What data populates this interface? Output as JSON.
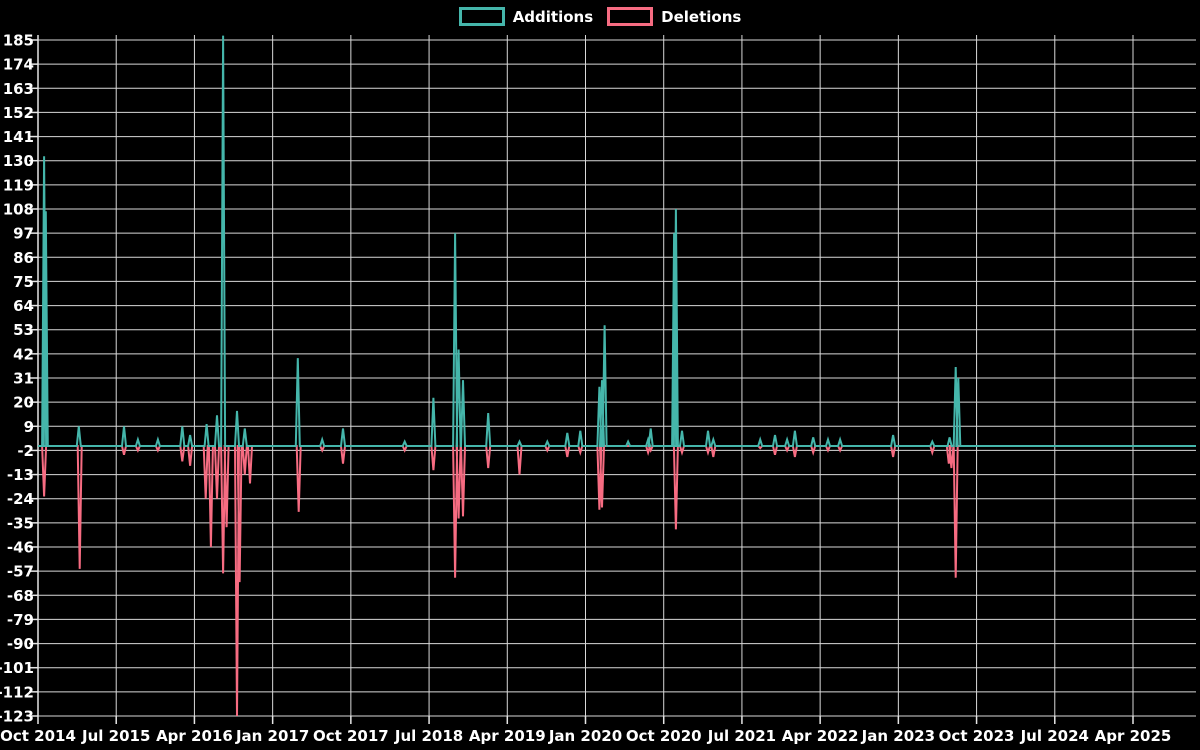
{
  "chart_data": {
    "type": "line",
    "title": "",
    "background_color": "#000000",
    "text_color": "#ffffff",
    "grid": {
      "show": true,
      "color": "#d9d9d9",
      "axis_color": "#e6e6e6"
    },
    "legend": {
      "position": "top-center",
      "entries": [
        "Additions",
        "Deletions"
      ]
    },
    "y_axis": {
      "min": -123,
      "max": 185,
      "tick_step": 11,
      "ticks": [
        185,
        174,
        163,
        152,
        141,
        130,
        119,
        108,
        97,
        86,
        75,
        64,
        53,
        42,
        31,
        20,
        9,
        -2,
        -13,
        -24,
        -35,
        -46,
        -57,
        -68,
        -79,
        -90,
        -101,
        -112,
        -123
      ]
    },
    "x_axis": {
      "unit": "months since Oct 2014",
      "tick_labels": [
        "Oct 2014",
        "Jul 2015",
        "Apr 2016",
        "Jan 2017",
        "Oct 2017",
        "Jul 2018",
        "Apr 2019",
        "Jan 2020",
        "Oct 2020",
        "Jul 2021",
        "Apr 2022",
        "Jan 2023",
        "Oct 2023",
        "Jul 2024",
        "Apr 2025"
      ],
      "label_interval_months": 9,
      "span_months": 133.3
    },
    "series": [
      {
        "name": "Additions",
        "color": "#45b6ab",
        "baseline": 0,
        "spikes": [
          [
            0.7,
            132
          ],
          [
            0.9,
            107
          ],
          [
            4.7,
            9
          ],
          [
            9.9,
            9
          ],
          [
            11.5,
            3
          ],
          [
            13.8,
            3
          ],
          [
            16.6,
            9
          ],
          [
            17.5,
            5
          ],
          [
            19.4,
            10
          ],
          [
            20.6,
            14
          ],
          [
            21.3,
            187
          ],
          [
            22.9,
            16
          ],
          [
            23.8,
            8
          ],
          [
            29.9,
            40
          ],
          [
            32.7,
            3
          ],
          [
            35.1,
            8
          ],
          [
            42.2,
            2
          ],
          [
            45.5,
            22
          ],
          [
            48.0,
            97
          ],
          [
            48.4,
            44
          ],
          [
            48.9,
            30
          ],
          [
            51.8,
            15
          ],
          [
            55.4,
            2
          ],
          [
            58.6,
            2
          ],
          [
            60.9,
            6
          ],
          [
            62.4,
            7
          ],
          [
            64.6,
            27
          ],
          [
            64.9,
            30
          ],
          [
            65.2,
            55
          ],
          [
            67.9,
            2
          ],
          [
            70.2,
            3
          ],
          [
            70.5,
            8
          ],
          [
            73.2,
            97
          ],
          [
            73.4,
            108
          ],
          [
            74.1,
            7
          ],
          [
            77.1,
            7
          ],
          [
            77.7,
            3
          ],
          [
            83.1,
            3
          ],
          [
            84.8,
            5
          ],
          [
            86.2,
            3
          ],
          [
            87.1,
            7
          ],
          [
            89.2,
            4
          ],
          [
            90.9,
            3
          ],
          [
            92.3,
            3
          ],
          [
            98.4,
            5
          ],
          [
            102.9,
            2
          ],
          [
            104.9,
            4
          ],
          [
            105.6,
            36
          ],
          [
            105.9,
            31
          ]
        ]
      },
      {
        "name": "Deletions",
        "color": "#f76c82",
        "baseline": 0,
        "spikes": [
          [
            0.7,
            -23
          ],
          [
            4.8,
            -56
          ],
          [
            9.9,
            -4
          ],
          [
            11.5,
            -2
          ],
          [
            13.8,
            -2
          ],
          [
            16.6,
            -7
          ],
          [
            17.5,
            -9
          ],
          [
            19.3,
            -24
          ],
          [
            19.9,
            -46
          ],
          [
            20.6,
            -24
          ],
          [
            21.3,
            -58
          ],
          [
            21.7,
            -37
          ],
          [
            22.9,
            -123
          ],
          [
            23.2,
            -62
          ],
          [
            23.8,
            -13
          ],
          [
            24.4,
            -17
          ],
          [
            30.0,
            -30
          ],
          [
            32.7,
            -2
          ],
          [
            35.1,
            -8
          ],
          [
            42.2,
            -2
          ],
          [
            45.5,
            -11
          ],
          [
            48.0,
            -60
          ],
          [
            48.4,
            -33
          ],
          [
            48.9,
            -32
          ],
          [
            51.8,
            -10
          ],
          [
            55.4,
            -13
          ],
          [
            58.6,
            -2
          ],
          [
            60.9,
            -5
          ],
          [
            62.4,
            -3
          ],
          [
            64.6,
            -29
          ],
          [
            64.9,
            -28
          ],
          [
            70.2,
            -3
          ],
          [
            70.5,
            -2
          ],
          [
            73.4,
            -38
          ],
          [
            74.1,
            -3
          ],
          [
            77.1,
            -3
          ],
          [
            77.7,
            -5
          ],
          [
            83.1,
            -1
          ],
          [
            84.8,
            -4
          ],
          [
            86.2,
            -2
          ],
          [
            87.1,
            -5
          ],
          [
            89.2,
            -3
          ],
          [
            90.9,
            -2
          ],
          [
            92.3,
            -2
          ],
          [
            98.4,
            -5
          ],
          [
            102.9,
            -3
          ],
          [
            104.8,
            -8
          ],
          [
            105.1,
            -10
          ],
          [
            105.6,
            -60
          ]
        ]
      }
    ]
  }
}
